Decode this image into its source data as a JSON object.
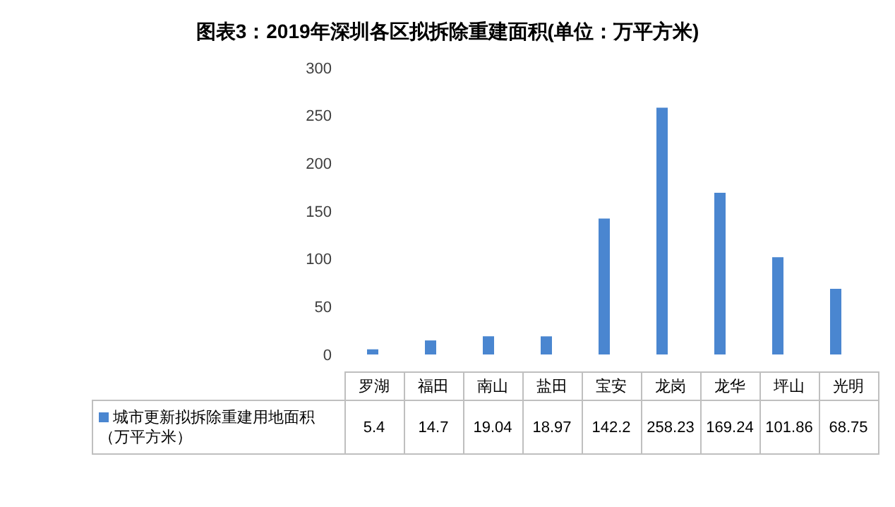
{
  "chart_data": {
    "type": "bar",
    "title": "图表3：2019年深圳各区拟拆除重建面积(单位：万平方米)",
    "categories": [
      "罗湖",
      "福田",
      "南山",
      "盐田",
      "宝安",
      "龙岗",
      "龙华",
      "坪山",
      "光明"
    ],
    "series": [
      {
        "name": "城市更新拟拆除重建用地面积（万平方米）",
        "color": "#4a86d0",
        "values": [
          5.4,
          14.7,
          19.04,
          18.97,
          142.2,
          258.23,
          169.24,
          101.86,
          68.75
        ]
      }
    ],
    "ylim": [
      0,
      300
    ],
    "yticks": [
      0,
      50,
      100,
      150,
      200,
      250,
      300
    ],
    "data_labels": true,
    "legend": "bottom",
    "grid": false
  }
}
